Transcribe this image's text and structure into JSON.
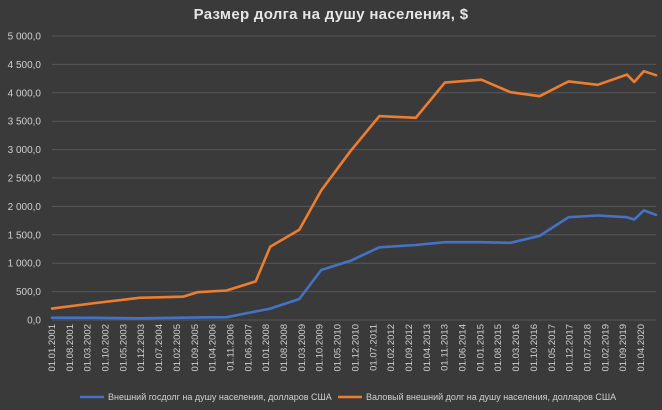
{
  "chart_data": {
    "type": "line",
    "title": "Размер долга на душу населения, $",
    "xlabel": "",
    "ylabel": "",
    "ylim": [
      0,
      5000
    ],
    "yticks": [
      "0,0",
      "500,0",
      "1 000,0",
      "1 500,0",
      "2 000,0",
      "2 500,0",
      "3 000,0",
      "3 500,0",
      "4 000,0",
      "4 500,0",
      "5 000,0"
    ],
    "grid": true,
    "legend_position": "bottom",
    "x_tick_labels": [
      "01.01.2001",
      "01.08.2001",
      "01.03.2002",
      "01.10.2002",
      "01.05.2003",
      "01.12.2003",
      "01.07.2004",
      "01.02.2005",
      "01.09.2005",
      "01.04.2006",
      "01.11.2006",
      "01.06.2007",
      "01.01.2008",
      "01.08.2008",
      "01.03.2009",
      "01.10.2009",
      "01.05.2010",
      "01.12.2010",
      "01.07.2011",
      "01.02.2012",
      "01.09.2012",
      "01.04.2013",
      "01.11.2013",
      "01.06.2014",
      "01.01.2015",
      "01.08.2015",
      "01.03.2016",
      "01.10.2016",
      "01.05.2017",
      "01.12.2017",
      "01.07.2018",
      "01.02.2019",
      "01.09.2019",
      "01.04.2020"
    ],
    "series": [
      {
        "name": "Внешний госдолг на душу населения, долларов США",
        "color": "#4472c4",
        "points": [
          {
            "x": "2001-01-01",
            "y": 40
          },
          {
            "x": "2002-07-01",
            "y": 38
          },
          {
            "x": "2004-01-01",
            "y": 30
          },
          {
            "x": "2005-07-01",
            "y": 40
          },
          {
            "x": "2006-01-01",
            "y": 45
          },
          {
            "x": "2007-01-01",
            "y": 50
          },
          {
            "x": "2008-07-01",
            "y": 200
          },
          {
            "x": "2009-07-01",
            "y": 370
          },
          {
            "x": "2010-04-01",
            "y": 880
          },
          {
            "x": "2011-04-01",
            "y": 1040
          },
          {
            "x": "2012-04-01",
            "y": 1280
          },
          {
            "x": "2013-07-01",
            "y": 1320
          },
          {
            "x": "2014-07-01",
            "y": 1370
          },
          {
            "x": "2015-10-01",
            "y": 1370
          },
          {
            "x": "2016-10-01",
            "y": 1360
          },
          {
            "x": "2017-10-01",
            "y": 1480
          },
          {
            "x": "2018-10-01",
            "y": 1810
          },
          {
            "x": "2019-10-01",
            "y": 1840
          },
          {
            "x": "2020-10-01",
            "y": 1810
          },
          {
            "x": "2021-01-01",
            "y": 1770
          },
          {
            "x": "2021-05-01",
            "y": 1930
          },
          {
            "x": "2021-10-01",
            "y": 1850
          }
        ]
      },
      {
        "name": "Валовый внешний долг на душу населения, долларов США",
        "color": "#ed7d31",
        "points": [
          {
            "x": "2001-01-01",
            "y": 200
          },
          {
            "x": "2002-07-01",
            "y": 300
          },
          {
            "x": "2004-01-01",
            "y": 390
          },
          {
            "x": "2005-07-01",
            "y": 410
          },
          {
            "x": "2006-01-01",
            "y": 490
          },
          {
            "x": "2007-01-01",
            "y": 520
          },
          {
            "x": "2008-01-01",
            "y": 680
          },
          {
            "x": "2008-07-01",
            "y": 1290
          },
          {
            "x": "2009-07-01",
            "y": 1590
          },
          {
            "x": "2010-04-01",
            "y": 2280
          },
          {
            "x": "2011-04-01",
            "y": 2970
          },
          {
            "x": "2012-04-01",
            "y": 3590
          },
          {
            "x": "2013-07-01",
            "y": 3560
          },
          {
            "x": "2014-07-01",
            "y": 4180
          },
          {
            "x": "2015-10-01",
            "y": 4230
          },
          {
            "x": "2016-10-01",
            "y": 4010
          },
          {
            "x": "2017-10-01",
            "y": 3940
          },
          {
            "x": "2018-10-01",
            "y": 4200
          },
          {
            "x": "2019-10-01",
            "y": 4140
          },
          {
            "x": "2020-10-01",
            "y": 4320
          },
          {
            "x": "2021-01-01",
            "y": 4190
          },
          {
            "x": "2021-05-01",
            "y": 4380
          },
          {
            "x": "2021-10-01",
            "y": 4310
          }
        ]
      }
    ]
  }
}
